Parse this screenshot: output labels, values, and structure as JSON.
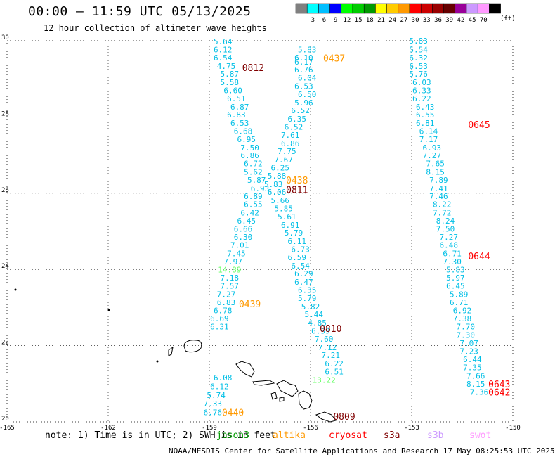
{
  "header": {
    "title": "00:00 — 11:59 UTC 05/13/2025",
    "subtitle": "12 hour collection of altimeter wave heights"
  },
  "colorbar": {
    "colors": [
      "#808080",
      "#00ffff",
      "#00bfff",
      "#0000ff",
      "#00ff00",
      "#00cc00",
      "#009900",
      "#ffff00",
      "#ffcc00",
      "#ff9900",
      "#ff0000",
      "#cc0000",
      "#990000",
      "#660000",
      "#990099",
      "#cc99ff",
      "#ff99ff",
      "#000000"
    ],
    "labels": [
      "3",
      "6",
      "9",
      "12",
      "15",
      "18",
      "21",
      "24",
      "27",
      "30",
      "33",
      "36",
      "39",
      "42",
      "45",
      "70"
    ],
    "unit": "(ft)"
  },
  "axes": {
    "x_ticks": [
      "-165",
      "-162",
      "-159",
      "-156",
      "-153",
      "-150"
    ],
    "y_ticks": [
      "20",
      "22",
      "24",
      "26",
      "28",
      "30"
    ],
    "xlim": [
      -165,
      -150
    ],
    "ylim": [
      20,
      30
    ]
  },
  "colors": {
    "cyan": "#00bfe6",
    "light_green": "#66ff66",
    "orange": "#ff9900",
    "red": "#ff0000",
    "dark_red": "#800000"
  },
  "track_labels": [
    {
      "text": "5.64",
      "lon": -158.6,
      "lat": 29.98,
      "color": "cyan"
    },
    {
      "text": "6.12",
      "lon": -158.6,
      "lat": 29.77,
      "color": "cyan"
    },
    {
      "text": "6.54",
      "lon": -158.6,
      "lat": 29.56,
      "color": "cyan"
    },
    {
      "text": "4.75",
      "lon": -158.5,
      "lat": 29.34,
      "color": "cyan"
    },
    {
      "text": "5.87",
      "lon": -158.4,
      "lat": 29.13,
      "color": "cyan"
    },
    {
      "text": "5.58",
      "lon": -158.4,
      "lat": 28.91,
      "color": "cyan"
    },
    {
      "text": "6.60",
      "lon": -158.3,
      "lat": 28.7,
      "color": "cyan"
    },
    {
      "text": "6.51",
      "lon": -158.2,
      "lat": 28.49,
      "color": "cyan"
    },
    {
      "text": "6.87",
      "lon": -158.1,
      "lat": 28.27,
      "color": "cyan"
    },
    {
      "text": "6.83",
      "lon": -158.2,
      "lat": 28.06,
      "color": "cyan"
    },
    {
      "text": "6.53",
      "lon": -158.1,
      "lat": 27.84,
      "color": "cyan"
    },
    {
      "text": "6.68",
      "lon": -158.0,
      "lat": 27.63,
      "color": "cyan"
    },
    {
      "text": "6.95",
      "lon": -157.9,
      "lat": 27.42,
      "color": "cyan"
    },
    {
      "text": "7.50",
      "lon": -157.8,
      "lat": 27.2,
      "color": "cyan"
    },
    {
      "text": "6.86",
      "lon": -157.8,
      "lat": 26.99,
      "color": "cyan"
    },
    {
      "text": "6.72",
      "lon": -157.7,
      "lat": 26.78,
      "color": "cyan"
    },
    {
      "text": "5.62",
      "lon": -157.7,
      "lat": 26.56,
      "color": "cyan"
    },
    {
      "text": "5.87",
      "lon": -157.6,
      "lat": 26.35,
      "color": "cyan"
    },
    {
      "text": "6.93",
      "lon": -157.5,
      "lat": 26.13,
      "color": "cyan"
    },
    {
      "text": "6.89",
      "lon": -157.7,
      "lat": 25.92,
      "color": "cyan"
    },
    {
      "text": "6.55",
      "lon": -157.7,
      "lat": 25.71,
      "color": "cyan"
    },
    {
      "text": "6.42",
      "lon": -157.8,
      "lat": 25.49,
      "color": "cyan"
    },
    {
      "text": "6.45",
      "lon": -157.9,
      "lat": 25.28,
      "color": "cyan"
    },
    {
      "text": "6.66",
      "lon": -158.0,
      "lat": 25.06,
      "color": "cyan"
    },
    {
      "text": "6.30",
      "lon": -158.0,
      "lat": 24.85,
      "color": "cyan"
    },
    {
      "text": "7.01",
      "lon": -158.1,
      "lat": 24.64,
      "color": "cyan"
    },
    {
      "text": "7.45",
      "lon": -158.2,
      "lat": 24.42,
      "color": "cyan"
    },
    {
      "text": "7.97",
      "lon": -158.3,
      "lat": 24.21,
      "color": "cyan"
    },
    {
      "text": "14.89",
      "lon": -158.4,
      "lat": 23.99,
      "color": "light_green"
    },
    {
      "text": "7.18",
      "lon": -158.4,
      "lat": 23.78,
      "color": "cyan"
    },
    {
      "text": "7.57",
      "lon": -158.4,
      "lat": 23.57,
      "color": "cyan"
    },
    {
      "text": "7.27",
      "lon": -158.5,
      "lat": 23.35,
      "color": "cyan"
    },
    {
      "text": "6.83",
      "lon": -158.5,
      "lat": 23.14,
      "color": "cyan"
    },
    {
      "text": "6.78",
      "lon": -158.6,
      "lat": 22.92,
      "color": "cyan"
    },
    {
      "text": "6.69",
      "lon": -158.7,
      "lat": 22.71,
      "color": "cyan"
    },
    {
      "text": "6.31",
      "lon": -158.7,
      "lat": 22.5,
      "color": "cyan"
    },
    {
      "text": "6.08",
      "lon": -158.6,
      "lat": 21.16,
      "color": "cyan"
    },
    {
      "text": "6.12",
      "lon": -158.7,
      "lat": 20.93,
      "color": "cyan"
    },
    {
      "text": "5.74",
      "lon": -158.8,
      "lat": 20.7,
      "color": "cyan"
    },
    {
      "text": "7.33",
      "lon": -158.9,
      "lat": 20.48,
      "color": "cyan"
    },
    {
      "text": "6.76",
      "lon": -158.9,
      "lat": 20.25,
      "color": "cyan"
    },
    {
      "text": "5.83",
      "lon": -156.1,
      "lat": 29.77,
      "color": "cyan"
    },
    {
      "text": "6.10",
      "lon": -156.2,
      "lat": 29.56,
      "color": "cyan"
    },
    {
      "text": "6.17",
      "lon": -156.2,
      "lat": 29.45,
      "color": "cyan"
    },
    {
      "text": "6.76",
      "lon": -156.2,
      "lat": 29.24,
      "color": "cyan"
    },
    {
      "text": "6.04",
      "lon": -156.1,
      "lat": 29.03,
      "color": "cyan"
    },
    {
      "text": "6.53",
      "lon": -156.2,
      "lat": 28.81,
      "color": "cyan"
    },
    {
      "text": "6.50",
      "lon": -156.1,
      "lat": 28.6,
      "color": "cyan"
    },
    {
      "text": "5.96",
      "lon": -156.2,
      "lat": 28.38,
      "color": "cyan"
    },
    {
      "text": "6.52",
      "lon": -156.3,
      "lat": 28.17,
      "color": "cyan"
    },
    {
      "text": "6.35",
      "lon": -156.4,
      "lat": 27.95,
      "color": "cyan"
    },
    {
      "text": "6.52",
      "lon": -156.5,
      "lat": 27.74,
      "color": "cyan"
    },
    {
      "text": "7.61",
      "lon": -156.6,
      "lat": 27.53,
      "color": "cyan"
    },
    {
      "text": "6.86",
      "lon": -156.6,
      "lat": 27.31,
      "color": "cyan"
    },
    {
      "text": "7.75",
      "lon": -156.7,
      "lat": 27.1,
      "color": "cyan"
    },
    {
      "text": "7.67",
      "lon": -156.8,
      "lat": 26.88,
      "color": "cyan"
    },
    {
      "text": "6.25",
      "lon": -156.9,
      "lat": 26.67,
      "color": "cyan"
    },
    {
      "text": "5.88",
      "lon": -157.0,
      "lat": 26.46,
      "color": "cyan"
    },
    {
      "text": "5.83",
      "lon": -157.1,
      "lat": 26.24,
      "color": "cyan"
    },
    {
      "text": "6.06",
      "lon": -157.0,
      "lat": 26.03,
      "color": "cyan"
    },
    {
      "text": "5.66",
      "lon": -156.9,
      "lat": 25.81,
      "color": "cyan"
    },
    {
      "text": "5.85",
      "lon": -156.8,
      "lat": 25.6,
      "color": "cyan"
    },
    {
      "text": "5.61",
      "lon": -156.7,
      "lat": 25.39,
      "color": "cyan"
    },
    {
      "text": "6.91",
      "lon": -156.6,
      "lat": 25.17,
      "color": "cyan"
    },
    {
      "text": "5.79",
      "lon": -156.5,
      "lat": 24.96,
      "color": "cyan"
    },
    {
      "text": "6.11",
      "lon": -156.4,
      "lat": 24.74,
      "color": "cyan"
    },
    {
      "text": "6.73",
      "lon": -156.3,
      "lat": 24.53,
      "color": "cyan"
    },
    {
      "text": "6.59",
      "lon": -156.4,
      "lat": 24.32,
      "color": "cyan"
    },
    {
      "text": "6.54",
      "lon": -156.3,
      "lat": 24.1,
      "color": "cyan"
    },
    {
      "text": "6.29",
      "lon": -156.2,
      "lat": 23.89,
      "color": "cyan"
    },
    {
      "text": "6.47",
      "lon": -156.2,
      "lat": 23.67,
      "color": "cyan"
    },
    {
      "text": "6.35",
      "lon": -156.1,
      "lat": 23.46,
      "color": "cyan"
    },
    {
      "text": "5.79",
      "lon": -156.1,
      "lat": 23.25,
      "color": "cyan"
    },
    {
      "text": "5.82",
      "lon": -156.0,
      "lat": 23.03,
      "color": "cyan"
    },
    {
      "text": "5.44",
      "lon": -155.9,
      "lat": 22.82,
      "color": "cyan"
    },
    {
      "text": "4.85",
      "lon": -155.8,
      "lat": 22.6,
      "color": "cyan"
    },
    {
      "text": "6.39",
      "lon": -155.7,
      "lat": 22.39,
      "color": "cyan"
    },
    {
      "text": "7.60",
      "lon": -155.6,
      "lat": 22.18,
      "color": "cyan"
    },
    {
      "text": "7.12",
      "lon": -155.5,
      "lat": 21.96,
      "color": "cyan"
    },
    {
      "text": "7.21",
      "lon": -155.4,
      "lat": 21.75,
      "color": "cyan"
    },
    {
      "text": "6.22",
      "lon": -155.3,
      "lat": 21.53,
      "color": "cyan"
    },
    {
      "text": "6.51",
      "lon": -155.3,
      "lat": 21.32,
      "color": "cyan"
    },
    {
      "text": "13.22",
      "lon": -155.6,
      "lat": 21.1,
      "color": "light_green"
    },
    {
      "text": "5.83",
      "lon": -152.8,
      "lat": 30.0,
      "color": "cyan"
    },
    {
      "text": "5.54",
      "lon": -152.8,
      "lat": 29.77,
      "color": "cyan"
    },
    {
      "text": "6.32",
      "lon": -152.8,
      "lat": 29.56,
      "color": "cyan"
    },
    {
      "text": "6.53",
      "lon": -152.8,
      "lat": 29.34,
      "color": "cyan"
    },
    {
      "text": "5.76",
      "lon": -152.8,
      "lat": 29.13,
      "color": "cyan"
    },
    {
      "text": "6.03",
      "lon": -152.7,
      "lat": 28.91,
      "color": "cyan"
    },
    {
      "text": "6.33",
      "lon": -152.7,
      "lat": 28.7,
      "color": "cyan"
    },
    {
      "text": "6.22",
      "lon": -152.7,
      "lat": 28.49,
      "color": "cyan"
    },
    {
      "text": "6.43",
      "lon": -152.6,
      "lat": 28.27,
      "color": "cyan"
    },
    {
      "text": "6.55",
      "lon": -152.6,
      "lat": 28.06,
      "color": "cyan"
    },
    {
      "text": "6.81",
      "lon": -152.6,
      "lat": 27.84,
      "color": "cyan"
    },
    {
      "text": "6.14",
      "lon": -152.5,
      "lat": 27.63,
      "color": "cyan"
    },
    {
      "text": "7.17",
      "lon": -152.5,
      "lat": 27.42,
      "color": "cyan"
    },
    {
      "text": "6.93",
      "lon": -152.4,
      "lat": 27.2,
      "color": "cyan"
    },
    {
      "text": "7.27",
      "lon": -152.4,
      "lat": 26.99,
      "color": "cyan"
    },
    {
      "text": "7.65",
      "lon": -152.3,
      "lat": 26.78,
      "color": "cyan"
    },
    {
      "text": "8.15",
      "lon": -152.3,
      "lat": 26.56,
      "color": "cyan"
    },
    {
      "text": "7.89",
      "lon": -152.2,
      "lat": 26.35,
      "color": "cyan"
    },
    {
      "text": "7.41",
      "lon": -152.2,
      "lat": 26.13,
      "color": "cyan"
    },
    {
      "text": "7.46",
      "lon": -152.2,
      "lat": 25.92,
      "color": "cyan"
    },
    {
      "text": "8.22",
      "lon": -152.1,
      "lat": 25.71,
      "color": "cyan"
    },
    {
      "text": "7.72",
      "lon": -152.1,
      "lat": 25.49,
      "color": "cyan"
    },
    {
      "text": "8.24",
      "lon": -152.0,
      "lat": 25.28,
      "color": "cyan"
    },
    {
      "text": "7.50",
      "lon": -152.0,
      "lat": 25.06,
      "color": "cyan"
    },
    {
      "text": "7.27",
      "lon": -151.9,
      "lat": 24.85,
      "color": "cyan"
    },
    {
      "text": "6.48",
      "lon": -151.9,
      "lat": 24.64,
      "color": "cyan"
    },
    {
      "text": "6.71",
      "lon": -151.8,
      "lat": 24.42,
      "color": "cyan"
    },
    {
      "text": "7.30",
      "lon": -151.8,
      "lat": 24.21,
      "color": "cyan"
    },
    {
      "text": "5.83",
      "lon": -151.7,
      "lat": 23.99,
      "color": "cyan"
    },
    {
      "text": "5.97",
      "lon": -151.7,
      "lat": 23.78,
      "color": "cyan"
    },
    {
      "text": "6.45",
      "lon": -151.7,
      "lat": 23.57,
      "color": "cyan"
    },
    {
      "text": "5.89",
      "lon": -151.6,
      "lat": 23.35,
      "color": "cyan"
    },
    {
      "text": "6.71",
      "lon": -151.6,
      "lat": 23.14,
      "color": "cyan"
    },
    {
      "text": "6.92",
      "lon": -151.5,
      "lat": 22.92,
      "color": "cyan"
    },
    {
      "text": "7.38",
      "lon": -151.5,
      "lat": 22.71,
      "color": "cyan"
    },
    {
      "text": "7.70",
      "lon": -151.4,
      "lat": 22.5,
      "color": "cyan"
    },
    {
      "text": "7.30",
      "lon": -151.4,
      "lat": 22.28,
      "color": "cyan"
    },
    {
      "text": "7.07",
      "lon": -151.3,
      "lat": 22.07,
      "color": "cyan"
    },
    {
      "text": "7.23",
      "lon": -151.3,
      "lat": 21.85,
      "color": "cyan"
    },
    {
      "text": "6.44",
      "lon": -151.2,
      "lat": 21.64,
      "color": "cyan"
    },
    {
      "text": "7.35",
      "lon": -151.2,
      "lat": 21.43,
      "color": "cyan"
    },
    {
      "text": "7.66",
      "lon": -151.1,
      "lat": 21.21,
      "color": "cyan"
    },
    {
      "text": "8.15",
      "lon": -151.1,
      "lat": 21.0,
      "color": "cyan"
    },
    {
      "text": "7.36",
      "lon": -151.0,
      "lat": 20.78,
      "color": "cyan"
    }
  ],
  "time_labels": [
    {
      "text": "0812",
      "lon": -157.7,
      "lat": 29.3,
      "color": "dark_red"
    },
    {
      "text": "0437",
      "lon": -155.3,
      "lat": 29.55,
      "color": "orange"
    },
    {
      "text": "0645",
      "lon": -151.0,
      "lat": 27.8,
      "color": "red"
    },
    {
      "text": "0438",
      "lon": -156.4,
      "lat": 26.35,
      "color": "orange"
    },
    {
      "text": "0811",
      "lon": -156.4,
      "lat": 26.1,
      "color": "dark_red"
    },
    {
      "text": "0644",
      "lon": -151.0,
      "lat": 24.35,
      "color": "red"
    },
    {
      "text": "0439",
      "lon": -157.8,
      "lat": 23.1,
      "color": "orange"
    },
    {
      "text": "0810",
      "lon": -155.4,
      "lat": 22.45,
      "color": "dark_red"
    },
    {
      "text": "0643",
      "lon": -150.4,
      "lat": 21.0,
      "color": "red"
    },
    {
      "text": "0440",
      "lon": -158.3,
      "lat": 20.25,
      "color": "orange"
    },
    {
      "text": "0809",
      "lon": -155.0,
      "lat": 20.15,
      "color": "dark_red"
    },
    {
      "text": "0642",
      "lon": -150.4,
      "lat": 20.78,
      "color": "red"
    }
  ],
  "footer": {
    "note": "note: 1) Time is in UTC; 2) SWH is in feet",
    "satellites": [
      {
        "name": "jason3",
        "color": "#009900"
      },
      {
        "name": "altika",
        "color": "#ff9900"
      },
      {
        "name": "cryosat",
        "color": "#ff0000"
      },
      {
        "name": "s3a",
        "color": "#800000"
      },
      {
        "name": "s3b",
        "color": "#cc99ff"
      },
      {
        "name": "swot",
        "color": "#ff99ff"
      }
    ],
    "credit": "NOAA/NESDIS Center for Satellite Applications and Research   17 May 08:25:53 UTC 2025"
  }
}
